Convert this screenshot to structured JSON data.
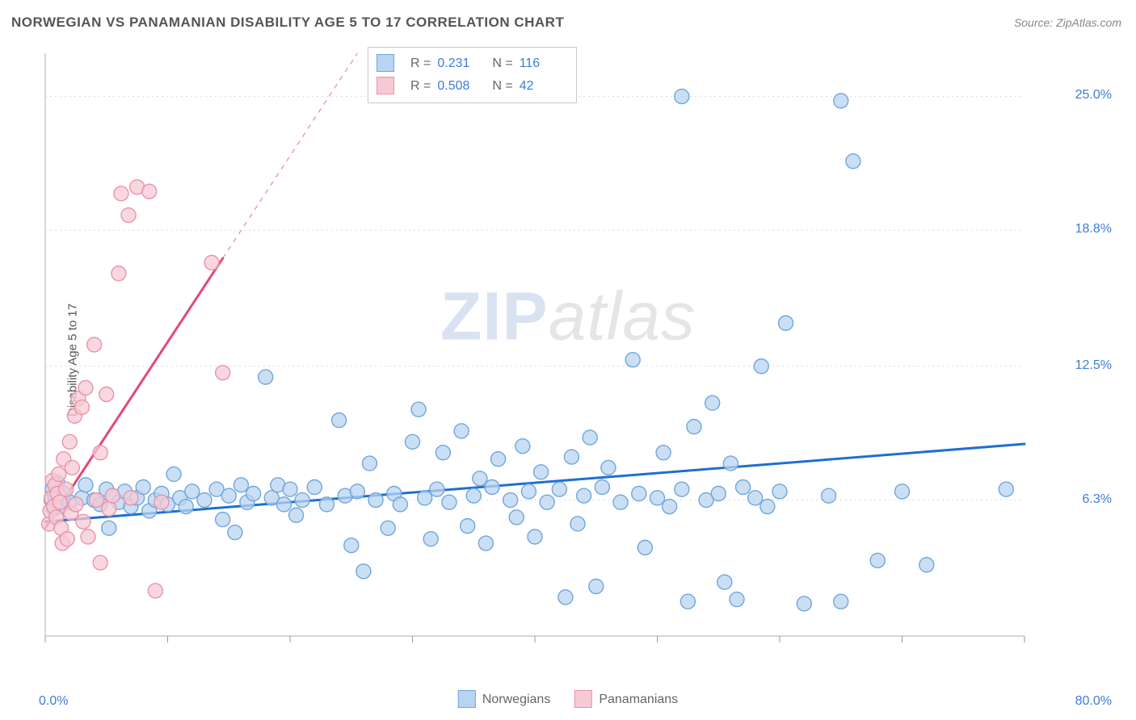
{
  "title": "NORWEGIAN VS PANAMANIAN DISABILITY AGE 5 TO 17 CORRELATION CHART",
  "source": "Source: ZipAtlas.com",
  "ylabel": "Disability Age 5 to 17",
  "watermark": {
    "zip": "ZIP",
    "atlas": "atlas"
  },
  "chart": {
    "type": "scatter",
    "background_color": "#ffffff",
    "grid_color": "#dcdcdc",
    "axis_color": "#bdbdbd",
    "tick_color": "#9a9a9a",
    "xlim": [
      0,
      80
    ],
    "ylim": [
      0,
      27
    ],
    "x_ticks": [
      0,
      10,
      20,
      30,
      40,
      50,
      60,
      70,
      80
    ],
    "y_gridlines": [
      6.3,
      12.5,
      18.8,
      25.0
    ],
    "y_tick_labels": [
      "6.3%",
      "12.5%",
      "18.8%",
      "25.0%"
    ],
    "x_min_label": "0.0%",
    "x_max_label": "80.0%",
    "marker_radius": 9,
    "marker_stroke_width": 1.4,
    "trend_line_width": 3,
    "trend_dash": "6,6",
    "label_fontsize": 16,
    "label_color": "#3b7dd8",
    "title_fontsize": 17,
    "title_color": "#555558"
  },
  "series": [
    {
      "name": "Norwegians",
      "fill": "#b9d4f0",
      "stroke": "#6fa6dd",
      "trend_color": "#1f6fd0",
      "R": "0.231",
      "N": "116",
      "trend": {
        "x1": 0,
        "y1": 5.3,
        "x2": 80,
        "y2": 8.9
      },
      "points": [
        [
          0.5,
          6.3
        ],
        [
          0.6,
          6.8
        ],
        [
          0.7,
          5.9
        ],
        [
          0.8,
          6.5
        ],
        [
          1,
          7.1
        ],
        [
          1.2,
          6.0
        ],
        [
          1.5,
          6.6
        ],
        [
          2,
          6.2
        ],
        [
          3,
          6.4
        ],
        [
          3.3,
          7.0
        ],
        [
          4,
          6.3
        ],
        [
          4.5,
          6.1
        ],
        [
          5,
          6.8
        ],
        [
          5.2,
          5.0
        ],
        [
          5.5,
          6.5
        ],
        [
          6,
          6.2
        ],
        [
          6.5,
          6.7
        ],
        [
          7,
          6.0
        ],
        [
          7.5,
          6.4
        ],
        [
          8,
          6.9
        ],
        [
          8.5,
          5.8
        ],
        [
          9,
          6.3
        ],
        [
          9.5,
          6.6
        ],
        [
          10,
          6.1
        ],
        [
          10.5,
          7.5
        ],
        [
          11,
          6.4
        ],
        [
          11.5,
          6.0
        ],
        [
          12,
          6.7
        ],
        [
          13,
          6.3
        ],
        [
          14,
          6.8
        ],
        [
          14.5,
          5.4
        ],
        [
          15,
          6.5
        ],
        [
          15.5,
          4.8
        ],
        [
          16,
          7.0
        ],
        [
          16.5,
          6.2
        ],
        [
          17,
          6.6
        ],
        [
          18,
          12.0
        ],
        [
          18.5,
          6.4
        ],
        [
          19,
          7.0
        ],
        [
          19.5,
          6.1
        ],
        [
          20,
          6.8
        ],
        [
          20.5,
          5.6
        ],
        [
          21,
          6.3
        ],
        [
          22,
          6.9
        ],
        [
          23,
          6.1
        ],
        [
          24,
          10.0
        ],
        [
          24.5,
          6.5
        ],
        [
          25,
          4.2
        ],
        [
          25.5,
          6.7
        ],
        [
          26,
          3.0
        ],
        [
          26.5,
          8.0
        ],
        [
          27,
          6.3
        ],
        [
          28,
          5.0
        ],
        [
          28.5,
          6.6
        ],
        [
          29,
          6.1
        ],
        [
          30,
          9.0
        ],
        [
          30.5,
          10.5
        ],
        [
          31,
          6.4
        ],
        [
          31.5,
          4.5
        ],
        [
          32,
          6.8
        ],
        [
          32.5,
          8.5
        ],
        [
          33,
          6.2
        ],
        [
          34,
          9.5
        ],
        [
          34.5,
          5.1
        ],
        [
          35,
          6.5
        ],
        [
          35.5,
          7.3
        ],
        [
          36,
          4.3
        ],
        [
          36.5,
          6.9
        ],
        [
          37,
          8.2
        ],
        [
          38,
          6.3
        ],
        [
          38.5,
          5.5
        ],
        [
          39,
          8.8
        ],
        [
          39.5,
          6.7
        ],
        [
          40,
          4.6
        ],
        [
          40.5,
          7.6
        ],
        [
          41,
          6.2
        ],
        [
          42,
          6.8
        ],
        [
          42.5,
          1.8
        ],
        [
          43,
          8.3
        ],
        [
          43.5,
          5.2
        ],
        [
          44,
          6.5
        ],
        [
          44.5,
          9.2
        ],
        [
          45,
          2.3
        ],
        [
          45.5,
          6.9
        ],
        [
          46,
          7.8
        ],
        [
          47,
          6.2
        ],
        [
          48,
          12.8
        ],
        [
          48.5,
          6.6
        ],
        [
          49,
          4.1
        ],
        [
          50,
          6.4
        ],
        [
          50.5,
          8.5
        ],
        [
          51,
          6.0
        ],
        [
          52,
          6.8
        ],
        [
          52.5,
          1.6
        ],
        [
          53,
          9.7
        ],
        [
          54,
          6.3
        ],
        [
          54.5,
          10.8
        ],
        [
          55,
          6.6
        ],
        [
          55.5,
          2.5
        ],
        [
          56,
          8.0
        ],
        [
          56.5,
          1.7
        ],
        [
          57,
          6.9
        ],
        [
          58,
          6.4
        ],
        [
          58.5,
          12.5
        ],
        [
          59,
          6.0
        ],
        [
          60,
          6.7
        ],
        [
          60.5,
          14.5
        ],
        [
          62,
          1.5
        ],
        [
          64,
          6.5
        ],
        [
          65,
          1.6
        ],
        [
          68,
          3.5
        ],
        [
          70,
          6.7
        ],
        [
          52,
          25.0
        ],
        [
          65,
          24.8
        ],
        [
          66,
          22.0
        ],
        [
          78.5,
          6.8
        ],
        [
          72,
          3.3
        ]
      ]
    },
    {
      "name": "Panamanians",
      "fill": "#f7c9d4",
      "stroke": "#e993ab",
      "trend_color": "#e14a78",
      "R": "0.508",
      "N": "42",
      "trend": {
        "x1": 0,
        "y1": 5.0,
        "x2": 14.5,
        "y2": 17.5
      },
      "trend_ext": {
        "x1": 14.5,
        "y1": 17.5,
        "x2": 25.5,
        "y2": 27
      },
      "points": [
        [
          0.3,
          5.2
        ],
        [
          0.4,
          5.8
        ],
        [
          0.5,
          6.4
        ],
        [
          0.6,
          7.2
        ],
        [
          0.7,
          6.0
        ],
        [
          0.8,
          7.0
        ],
        [
          0.9,
          5.5
        ],
        [
          1.0,
          6.6
        ],
        [
          1.1,
          7.5
        ],
        [
          1.2,
          6.2
        ],
        [
          1.3,
          5.0
        ],
        [
          1.4,
          4.3
        ],
        [
          1.5,
          8.2
        ],
        [
          1.7,
          6.8
        ],
        [
          1.8,
          4.5
        ],
        [
          2.0,
          9.0
        ],
        [
          2.1,
          5.7
        ],
        [
          2.2,
          7.8
        ],
        [
          2.4,
          10.2
        ],
        [
          2.5,
          6.1
        ],
        [
          2.7,
          11.0
        ],
        [
          3.0,
          10.6
        ],
        [
          3.1,
          5.3
        ],
        [
          3.3,
          11.5
        ],
        [
          3.5,
          4.6
        ],
        [
          4.0,
          13.5
        ],
        [
          4.2,
          6.3
        ],
        [
          4.5,
          8.5
        ],
        [
          5.0,
          11.2
        ],
        [
          5.2,
          5.9
        ],
        [
          5.5,
          6.5
        ],
        [
          6.0,
          16.8
        ],
        [
          6.2,
          20.5
        ],
        [
          6.8,
          19.5
        ],
        [
          7.0,
          6.4
        ],
        [
          7.5,
          20.8
        ],
        [
          8.5,
          20.6
        ],
        [
          9.0,
          2.1
        ],
        [
          9.5,
          6.2
        ],
        [
          13.6,
          17.3
        ],
        [
          4.5,
          3.4
        ],
        [
          14.5,
          12.2
        ]
      ]
    }
  ],
  "bottom_legend": [
    {
      "label": "Norwegians",
      "fill": "#b9d4f0",
      "stroke": "#6fa6dd"
    },
    {
      "label": "Panamanians",
      "fill": "#f7c9d4",
      "stroke": "#e993ab"
    }
  ],
  "stats_legend": {
    "labels": {
      "R": "R  =",
      "N": "N  ="
    }
  }
}
